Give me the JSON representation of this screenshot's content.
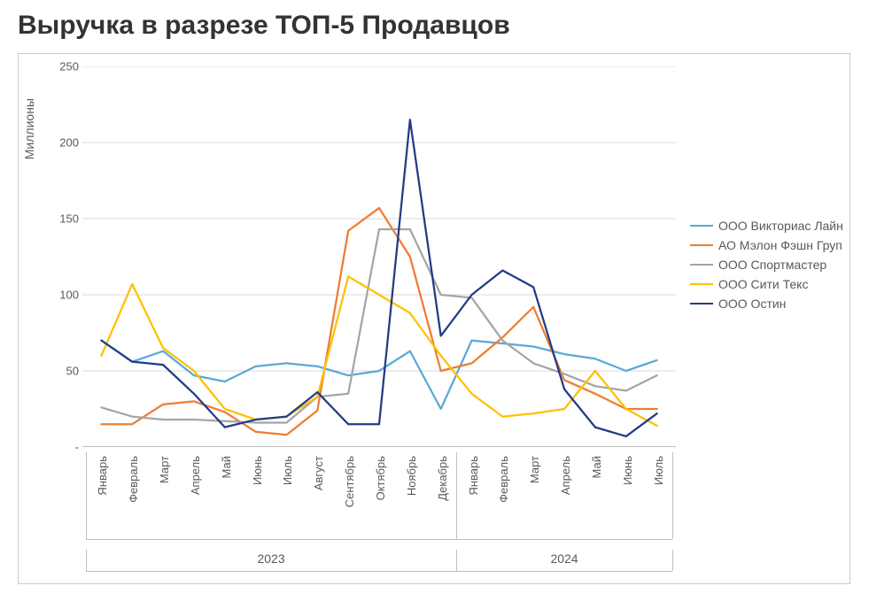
{
  "title": "Выручка в разрезе ТОП-5 Продавцов",
  "chart": {
    "type": "line",
    "y_axis_title": "Миллионы",
    "ylim": [
      0,
      250
    ],
    "ytick_step": 50,
    "yticks": [
      "-",
      "50",
      "100",
      "150",
      "200",
      "250"
    ],
    "background_color": "#ffffff",
    "grid_color": "#d9d9d9",
    "axis_color": "#bfbfbf",
    "line_width": 2.25,
    "label_fontsize": 13,
    "legend_fontsize": 14,
    "title_fontsize": 30,
    "years": [
      {
        "label": "2023",
        "span": 12
      },
      {
        "label": "2024",
        "span": 7
      }
    ],
    "months": [
      "Январь",
      "Февраль",
      "Март",
      "Апрель",
      "Май",
      "Июнь",
      "Июль",
      "Август",
      "Сентябрь",
      "Октябрь",
      "Ноябрь",
      "Декабрь",
      "Январь",
      "Февраль",
      "Март",
      "Апрель",
      "Май",
      "Июнь",
      "Июль"
    ],
    "series": [
      {
        "name": "ООО Викториас Лайн",
        "color": "#5aa9d6",
        "values": [
          70,
          56,
          63,
          47,
          43,
          53,
          55,
          53,
          47,
          50,
          63,
          25,
          70,
          68,
          66,
          61,
          58,
          50,
          57
        ]
      },
      {
        "name": "АО Мэлон Фэшн Груп",
        "color": "#ed7d31",
        "values": [
          15,
          15,
          28,
          30,
          23,
          10,
          8,
          24,
          142,
          157,
          125,
          50,
          55,
          72,
          92,
          44,
          35,
          25,
          25
        ]
      },
      {
        "name": "ООО Спортмастер",
        "color": "#a5a5a5",
        "values": [
          26,
          20,
          18,
          18,
          17,
          16,
          16,
          33,
          35,
          143,
          143,
          100,
          98,
          70,
          55,
          48,
          40,
          37,
          47
        ]
      },
      {
        "name": "ООО Сити Текс",
        "color": "#ffc000",
        "values": [
          60,
          107,
          65,
          50,
          25,
          18,
          20,
          33,
          112,
          100,
          88,
          60,
          35,
          20,
          22,
          25,
          50,
          25,
          14
        ]
      },
      {
        "name": "ООО Остин",
        "color": "#233b86",
        "values": [
          70,
          56,
          54,
          35,
          13,
          18,
          20,
          36,
          15,
          15,
          215,
          73,
          100,
          116,
          105,
          38,
          13,
          7,
          22
        ]
      }
    ]
  }
}
